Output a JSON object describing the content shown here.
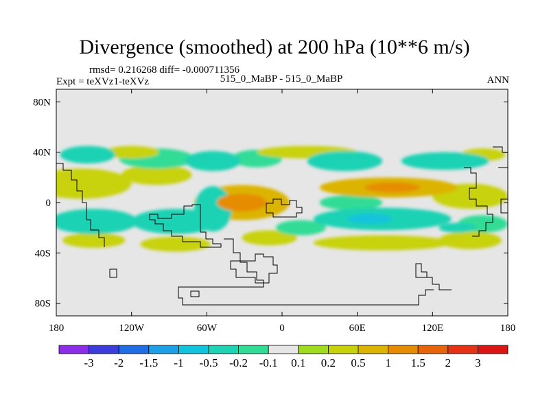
{
  "header": {
    "title": "Divergence (smoothed) at 200 hPa (10**6 m/s)",
    "stats": "rmsd= 0.216268 diff= -0.000711356",
    "expt": "Expt = teXVz1-teXVz",
    "case": "515_0_MaBP - 515_0_MaBP",
    "season": "ANN"
  },
  "chart_data": {
    "type": "heatmap",
    "title": "Divergence (smoothed) at 200 hPa (10**6 m/s)",
    "xlabel": "",
    "ylabel": "",
    "xlim": [
      -180,
      180
    ],
    "ylim": [
      -90,
      90
    ],
    "xticks": [
      {
        "value": -180,
        "label": "180"
      },
      {
        "value": -120,
        "label": "120W"
      },
      {
        "value": -60,
        "label": "60W"
      },
      {
        "value": 0,
        "label": "0"
      },
      {
        "value": 60,
        "label": "60E"
      },
      {
        "value": 120,
        "label": "120E"
      },
      {
        "value": 180,
        "label": "180"
      }
    ],
    "yticks": [
      {
        "value": 80,
        "label": "80N"
      },
      {
        "value": 40,
        "label": "40N"
      },
      {
        "value": 0,
        "label": "0"
      },
      {
        "value": -40,
        "label": "40S"
      },
      {
        "value": -80,
        "label": "80S"
      }
    ],
    "colorbar": {
      "levels": [
        "-3",
        "-2",
        "-1.5",
        "-1",
        "-0.5",
        "-0.2",
        "-0.1",
        "0.1",
        "0.2",
        "0.5",
        "1",
        "1.5",
        "2",
        "3"
      ],
      "colors": [
        "#8c2de8",
        "#3c3cdc",
        "#1e6ee6",
        "#1ea0e6",
        "#12c3dc",
        "#1ed2b4",
        "#32dc96",
        "#e6e6e6",
        "#a0dc1e",
        "#c8d20a",
        "#dcb400",
        "#e68c00",
        "#e6640a",
        "#e63214",
        "#dc1414"
      ]
    },
    "regions": [
      {
        "name": "npac-band",
        "lon": -160,
        "lat": 15,
        "rx": 40,
        "ry": 12,
        "value": 0.3
      },
      {
        "name": "npac-band-2",
        "lon": -100,
        "lat": 22,
        "rx": 28,
        "ry": 8,
        "value": 0.2
      },
      {
        "name": "nh-wave-1",
        "lon": -155,
        "lat": 38,
        "rx": 22,
        "ry": 7,
        "value": -0.3
      },
      {
        "name": "nh-wave-2",
        "lon": -100,
        "lat": 35,
        "rx": 30,
        "ry": 8,
        "value": -0.2
      },
      {
        "name": "nh-wave-3",
        "lon": -55,
        "lat": 33,
        "rx": 22,
        "ry": 8,
        "value": -0.5
      },
      {
        "name": "nh-wave-4",
        "lon": -20,
        "lat": 35,
        "rx": 20,
        "ry": 7,
        "value": -0.2
      },
      {
        "name": "nh-wave-5",
        "lon": 50,
        "lat": 33,
        "rx": 30,
        "ry": 8,
        "value": -0.3
      },
      {
        "name": "nh-wave-6",
        "lon": 130,
        "lat": 33,
        "rx": 35,
        "ry": 7,
        "value": -0.3
      },
      {
        "name": "nh-pos-1",
        "lon": -120,
        "lat": 40,
        "rx": 22,
        "ry": 5,
        "value": 0.2
      },
      {
        "name": "nh-pos-2",
        "lon": 20,
        "lat": 40,
        "rx": 40,
        "ry": 5,
        "value": 0.2
      },
      {
        "name": "nh-pos-3",
        "lon": 160,
        "lat": 38,
        "rx": 18,
        "ry": 5,
        "value": 0.2
      },
      {
        "name": "eq-atlantic",
        "lon": -32,
        "lat": 0,
        "rx": 38,
        "ry": 14,
        "value": 0.5
      },
      {
        "name": "eq-atlantic-core",
        "lon": -32,
        "lat": 0,
        "rx": 20,
        "ry": 7,
        "value": 1.0
      },
      {
        "name": "io-north",
        "lon": 85,
        "lat": 12,
        "rx": 55,
        "ry": 8,
        "value": 0.5
      },
      {
        "name": "io-north-core",
        "lon": 88,
        "lat": 12,
        "rx": 22,
        "ry": 4,
        "value": 1.0
      },
      {
        "name": "eq-pac-east",
        "lon": 150,
        "lat": 5,
        "rx": 30,
        "ry": 10,
        "value": 0.3
      },
      {
        "name": "eq-neg-1",
        "lon": 55,
        "lat": 0,
        "rx": 25,
        "ry": 6,
        "value": -0.2
      },
      {
        "name": "io-south",
        "lon": 80,
        "lat": -13,
        "rx": 55,
        "ry": 9,
        "value": -0.5
      },
      {
        "name": "io-south-core",
        "lon": 70,
        "lat": -13,
        "rx": 18,
        "ry": 4,
        "value": -1.0
      },
      {
        "name": "sh-pac-neg",
        "lon": -150,
        "lat": -15,
        "rx": 35,
        "ry": 10,
        "value": -0.3
      },
      {
        "name": "sh-pac-neg-2",
        "lon": -85,
        "lat": -15,
        "rx": 35,
        "ry": 10,
        "value": -0.5
      },
      {
        "name": "sam-neg",
        "lon": -55,
        "lat": -5,
        "rx": 15,
        "ry": 18,
        "value": -0.5
      },
      {
        "name": "sh-pos-1",
        "lon": -150,
        "lat": -30,
        "rx": 25,
        "ry": 6,
        "value": 0.2
      },
      {
        "name": "sh-pos-2",
        "lon": -85,
        "lat": -33,
        "rx": 28,
        "ry": 6,
        "value": 0.2
      },
      {
        "name": "sh-pos-3",
        "lon": -10,
        "lat": -28,
        "rx": 22,
        "ry": 6,
        "value": 0.2
      },
      {
        "name": "sh-pos-4",
        "lon": 80,
        "lat": -32,
        "rx": 55,
        "ry": 6,
        "value": 0.2
      },
      {
        "name": "sh-pos-5",
        "lon": 150,
        "lat": -30,
        "rx": 25,
        "ry": 7,
        "value": 0.3
      },
      {
        "name": "sh-neg-6",
        "lon": 160,
        "lat": -17,
        "rx": 20,
        "ry": 7,
        "value": -0.2
      },
      {
        "name": "sh-neg-7",
        "lon": 15,
        "lat": -20,
        "rx": 20,
        "ry": 6,
        "value": -0.2
      },
      {
        "name": "sh-neg-8",
        "lon": 140,
        "lat": -20,
        "rx": 15,
        "ry": 4,
        "value": -0.5
      }
    ]
  }
}
